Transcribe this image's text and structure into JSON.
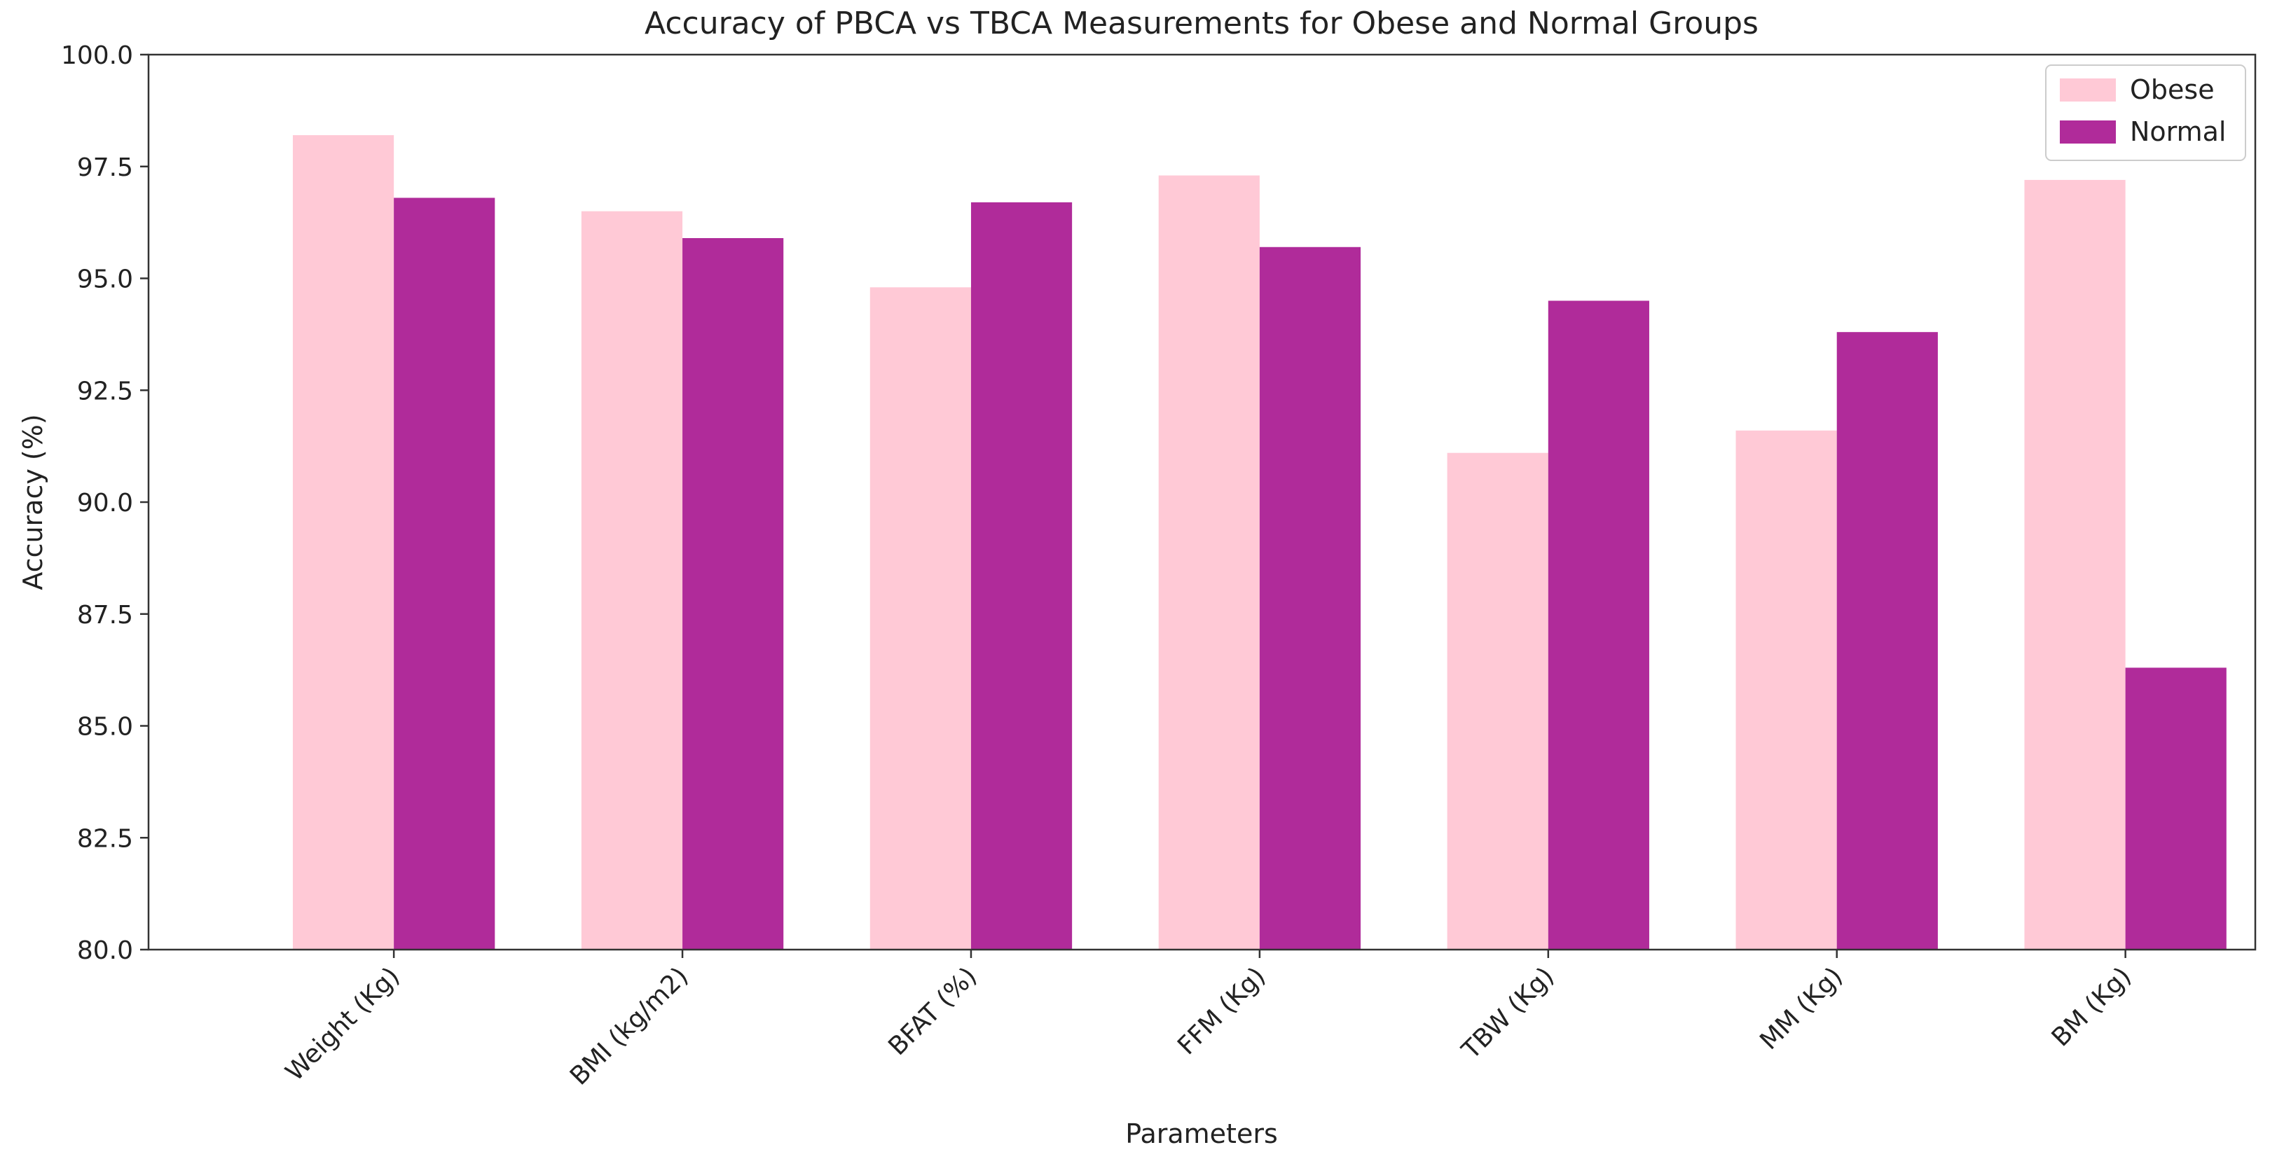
{
  "chart_data": {
    "type": "bar",
    "title": "Accuracy of PBCA vs TBCA Measurements for Obese and Normal Groups",
    "xlabel": "Parameters",
    "ylabel": "Accuracy (%)",
    "ylim": [
      80,
      100
    ],
    "yticks": [
      80.0,
      82.5,
      85.0,
      87.5,
      90.0,
      92.5,
      95.0,
      97.5,
      100.0
    ],
    "ytick_labels": [
      "80.0",
      "82.5",
      "85.0",
      "87.5",
      "90.0",
      "92.5",
      "95.0",
      "97.5",
      "100.0"
    ],
    "categories": [
      "Weight (Kg)",
      "BMI (kg/m2)",
      "BFAT (%)",
      "FFM (Kg)",
      "TBW (Kg)",
      "MM (Kg)",
      "BM (Kg)"
    ],
    "series": [
      {
        "name": "Obese",
        "color": "#ffc9d6",
        "values": [
          98.2,
          96.5,
          94.8,
          97.3,
          91.1,
          91.6,
          97.2
        ]
      },
      {
        "name": "Normal",
        "color": "#b02b9a",
        "values": [
          96.8,
          95.9,
          96.7,
          95.7,
          94.5,
          93.8,
          86.3
        ]
      }
    ],
    "grid": false,
    "legend_position": "top-right"
  }
}
